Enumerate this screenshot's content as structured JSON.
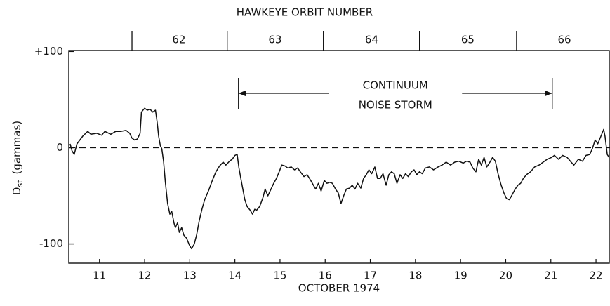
{
  "chart_data": {
    "type": "line",
    "title": "HAWKEYE ORBIT NUMBER",
    "xlabel": "OCTOBER 1974",
    "ylabel": "D",
    "ylabel_sub": "st",
    "ylabel_unit": "(gammas)",
    "color": "#111111",
    "xlim": [
      10.82,
      22.81
    ],
    "ylim": [
      -120,
      101
    ],
    "yticks": [
      {
        "value": 100,
        "label": "+100"
      },
      0,
      {
        "value": -100,
        "label": "-100"
      }
    ],
    "xticks": [
      {
        "value": 11.5,
        "label": "11"
      },
      {
        "value": 12.5,
        "label": "12"
      },
      {
        "value": 13.5,
        "label": "13"
      },
      {
        "value": 14.5,
        "label": "14"
      },
      {
        "value": 15.5,
        "label": "15"
      },
      {
        "value": 16.5,
        "label": "16"
      },
      {
        "value": 17.5,
        "label": "17"
      },
      {
        "value": 18.5,
        "label": "18"
      },
      {
        "value": 19.5,
        "label": "19"
      },
      {
        "value": 20.5,
        "label": "20"
      },
      {
        "value": 21.5,
        "label": "21"
      },
      {
        "value": 22.5,
        "label": "22"
      }
    ],
    "reference_line": 0,
    "orbit_boundaries": [
      12.22,
      14.33,
      16.46,
      18.59,
      20.74
    ],
    "orbit_labels": [
      {
        "value": 13.26,
        "label": "62"
      },
      {
        "value": 15.39,
        "label": "63"
      },
      {
        "value": 17.53,
        "label": "64"
      },
      {
        "value": 19.66,
        "label": "65"
      },
      {
        "value": 21.8,
        "label": "66"
      }
    ],
    "annotation": {
      "text": [
        "CONTINUUM",
        "NOISE STORM"
      ],
      "x": [
        14.58,
        21.53
      ]
    },
    "x": [
      10.85,
      10.89,
      10.94,
      11.0,
      11.13,
      11.24,
      11.31,
      11.44,
      11.55,
      11.62,
      11.75,
      11.86,
      11.97,
      12.09,
      12.17,
      12.22,
      12.28,
      12.34,
      12.4,
      12.43,
      12.5,
      12.56,
      12.62,
      12.68,
      12.74,
      12.78,
      12.81,
      12.85,
      12.88,
      12.92,
      12.96,
      13.01,
      13.06,
      13.1,
      13.15,
      13.18,
      13.23,
      13.27,
      13.32,
      13.37,
      13.43,
      13.49,
      13.54,
      13.6,
      13.65,
      13.71,
      13.77,
      13.83,
      13.93,
      14.0,
      14.08,
      14.16,
      14.24,
      14.3,
      14.38,
      14.44,
      14.5,
      14.55,
      14.59,
      14.66,
      14.72,
      14.77,
      14.84,
      14.89,
      14.94,
      14.98,
      15.05,
      15.12,
      15.17,
      15.23,
      15.28,
      15.36,
      15.42,
      15.48,
      15.54,
      15.61,
      15.67,
      15.75,
      15.82,
      15.89,
      15.95,
      16.03,
      16.1,
      16.18,
      16.24,
      16.29,
      16.35,
      16.41,
      16.48,
      16.54,
      16.6,
      16.66,
      16.73,
      16.79,
      16.85,
      16.91,
      16.97,
      17.04,
      17.1,
      17.16,
      17.22,
      17.29,
      17.35,
      17.41,
      17.47,
      17.53,
      17.6,
      17.66,
      17.72,
      17.78,
      17.85,
      17.91,
      17.97,
      18.03,
      18.09,
      18.16,
      18.22,
      18.28,
      18.34,
      18.41,
      18.47,
      18.53,
      18.59,
      18.65,
      18.72,
      18.81,
      18.9,
      19.0,
      19.09,
      19.18,
      19.28,
      19.37,
      19.46,
      19.56,
      19.63,
      19.71,
      19.77,
      19.84,
      19.9,
      19.96,
      20.02,
      20.08,
      20.15,
      20.21,
      20.27,
      20.33,
      20.4,
      20.46,
      20.52,
      20.58,
      20.64,
      20.71,
      20.77,
      20.83,
      20.89,
      20.96,
      21.05,
      21.14,
      21.24,
      21.33,
      21.42,
      21.52,
      21.58,
      21.67,
      21.76,
      21.86,
      21.95,
      22.01,
      22.11,
      22.2,
      22.28,
      22.36,
      22.42,
      22.48,
      22.54,
      22.61,
      22.67,
      22.7,
      22.75,
      22.79
    ],
    "values": [
      4,
      -3,
      -7,
      4,
      12,
      17,
      14,
      15,
      13,
      17,
      14,
      17,
      17,
      18,
      15,
      10,
      8,
      9,
      15,
      37,
      41,
      39,
      40,
      37,
      39,
      26,
      12,
      2,
      -1,
      -14,
      -36,
      -58,
      -69,
      -66,
      -78,
      -83,
      -78,
      -88,
      -83,
      -91,
      -94,
      -101,
      -105,
      -100,
      -91,
      -76,
      -64,
      -54,
      -43,
      -34,
      -25,
      -19,
      -15,
      -18,
      -14,
      -12,
      -8,
      -7,
      -21,
      -39,
      -54,
      -61,
      -65,
      -69,
      -64,
      -65,
      -61,
      -52,
      -43,
      -50,
      -45,
      -37,
      -32,
      -25,
      -18,
      -19,
      -21,
      -20,
      -23,
      -21,
      -25,
      -30,
      -28,
      -34,
      -39,
      -43,
      -37,
      -45,
      -34,
      -37,
      -36,
      -37,
      -43,
      -47,
      -58,
      -50,
      -43,
      -42,
      -39,
      -43,
      -37,
      -42,
      -32,
      -28,
      -23,
      -27,
      -20,
      -32,
      -32,
      -27,
      -39,
      -28,
      -25,
      -27,
      -37,
      -28,
      -32,
      -27,
      -30,
      -25,
      -23,
      -28,
      -25,
      -27,
      -21,
      -20,
      -23,
      -20,
      -18,
      -15,
      -18,
      -15,
      -14,
      -16,
      -14,
      -15,
      -21,
      -25,
      -12,
      -18,
      -10,
      -20,
      -15,
      -10,
      -14,
      -27,
      -39,
      -47,
      -53,
      -54,
      -49,
      -43,
      -39,
      -37,
      -32,
      -28,
      -25,
      -20,
      -18,
      -15,
      -12,
      -10,
      -8,
      -12,
      -8,
      -10,
      -15,
      -18,
      -12,
      -14,
      -8,
      -7,
      -1,
      8,
      4,
      12,
      19,
      12,
      -7,
      -10
    ]
  }
}
